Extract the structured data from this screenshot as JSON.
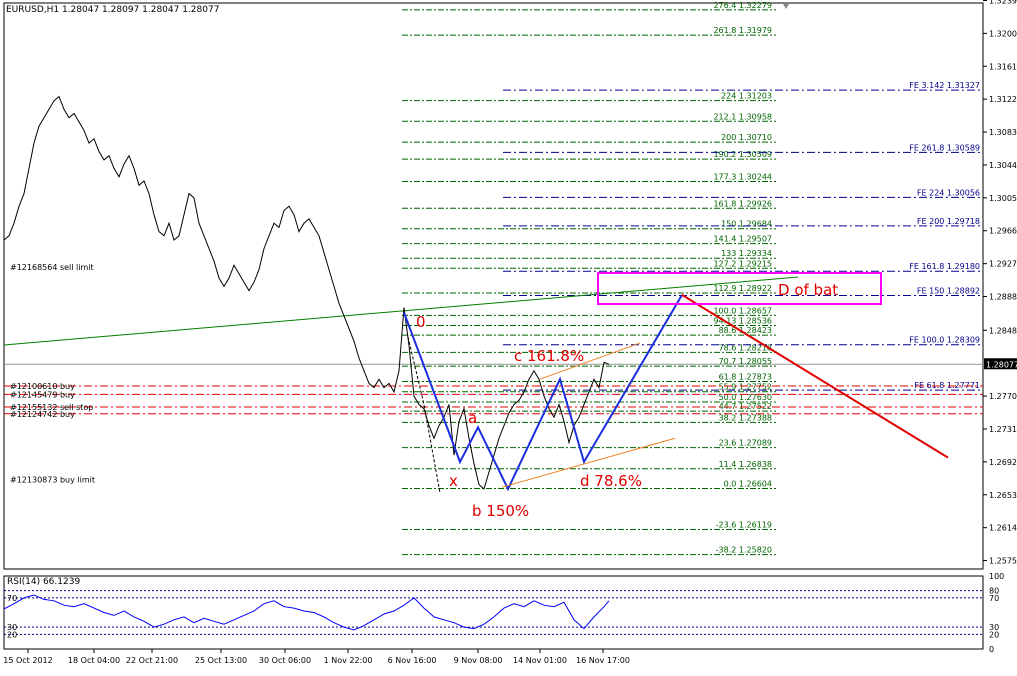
{
  "chart_data": {
    "type": "line",
    "title": "EURUSD,H1  1.28047 1.28097 1.28047 1.28077",
    "symbol": "EURUSD",
    "timeframe": "H1",
    "ohlc_header": "1.28047 1.28097 1.28047 1.28077",
    "current_price": "1.28077",
    "colors": {
      "price": "#000000",
      "fib_retrace": "#006400",
      "fib_ext": "#00008b",
      "pattern": "#1a2ee0",
      "projection": "#e00000",
      "orders": "#e00000",
      "channel": "#f08020",
      "trend": "#008000",
      "box": "#ff00ff",
      "label": "#e00000",
      "rsi": "#0000ff",
      "grid": "#000080"
    },
    "y_axis": {
      "ylim": [
        1.2565,
        1.3236
      ],
      "ticks": [
        "1.32390",
        "1.32000",
        "1.31610",
        "1.31220",
        "1.30830",
        "1.30440",
        "1.30050",
        "1.29660",
        "1.29270",
        "1.28880",
        "1.28480",
        "1.28077",
        "1.27700",
        "1.27310",
        "1.26920",
        "1.26530",
        "1.26140",
        "1.25750"
      ]
    },
    "x_axis": {
      "ticks": [
        "15 Oct 2012",
        "18 Oct 04:00",
        "22 Oct 21:00",
        "25 Oct 13:00",
        "30 Oct 06:00",
        "1 Nov 22:00",
        "6 Nov 16:00",
        "9 Nov 08:00",
        "14 Nov 01:00",
        "16 Nov 17:00"
      ]
    },
    "price_series": {
      "name": "EURUSD",
      "x": [
        0,
        5,
        10,
        15,
        20,
        25,
        30,
        35,
        40,
        45,
        50,
        55,
        60,
        65,
        70,
        75,
        80,
        85,
        90,
        95,
        100,
        105,
        110,
        115,
        120,
        125,
        130,
        135,
        140,
        145,
        150,
        155,
        160,
        165,
        170,
        175,
        180,
        185,
        190,
        195,
        200,
        205,
        210,
        215,
        220,
        225,
        230,
        235,
        240,
        245,
        250,
        255,
        260,
        265,
        270,
        275,
        280,
        285,
        290,
        295,
        300,
        305,
        310,
        315,
        320,
        325,
        330,
        335,
        340,
        345,
        350,
        355,
        360,
        365,
        370,
        375,
        380,
        385,
        390,
        395,
        400,
        405,
        410,
        415,
        420,
        425,
        430,
        435,
        440,
        445,
        450,
        455,
        460,
        465,
        470,
        475,
        480,
        485,
        490,
        495,
        500,
        505,
        510,
        515,
        520,
        525,
        530,
        535,
        540,
        545,
        550,
        555,
        560,
        565,
        570,
        575,
        580,
        585,
        590,
        595,
        600,
        605
      ],
      "y": [
        1.2955,
        1.296,
        1.2975,
        1.2995,
        1.301,
        1.304,
        1.307,
        1.309,
        1.31,
        1.311,
        1.312,
        1.3125,
        1.311,
        1.31,
        1.3105,
        1.3095,
        1.3085,
        1.307,
        1.3075,
        1.306,
        1.305,
        1.3055,
        1.304,
        1.303,
        1.3045,
        1.3055,
        1.304,
        1.302,
        1.3025,
        1.301,
        1.2985,
        1.2965,
        1.296,
        1.2975,
        1.2955,
        1.296,
        1.2985,
        1.301,
        1.3005,
        1.2975,
        1.296,
        1.2945,
        1.293,
        1.291,
        1.29,
        1.291,
        1.2925,
        1.2915,
        1.2905,
        1.2895,
        1.2905,
        1.292,
        1.2945,
        1.296,
        1.2975,
        1.297,
        1.299,
        1.2995,
        1.2985,
        1.2965,
        1.2975,
        1.298,
        1.297,
        1.296,
        1.294,
        1.292,
        1.29,
        1.288,
        1.2865,
        1.285,
        1.2835,
        1.2815,
        1.28,
        1.2785,
        1.278,
        1.279,
        1.278,
        1.2785,
        1.2775,
        1.28,
        1.2875,
        1.283,
        1.277,
        1.276,
        1.2755,
        1.2735,
        1.272,
        1.2735,
        1.2745,
        1.276,
        1.27,
        1.274,
        1.2755,
        1.272,
        1.269,
        1.2665,
        1.266,
        1.268,
        1.27,
        1.272,
        1.2735,
        1.275,
        1.276,
        1.2765,
        1.2775,
        1.279,
        1.28,
        1.279,
        1.277,
        1.2755,
        1.2745,
        1.276,
        1.274,
        1.2715,
        1.2735,
        1.2745,
        1.276,
        1.2775,
        1.279,
        1.278,
        1.281,
        1.28077
      ]
    },
    "fib_retracement": [
      {
        "label": "276.4 1.32279",
        "y": 1.32279
      },
      {
        "label": "261.8 1.31979",
        "y": 1.31979
      },
      {
        "label": "224 1.31203",
        "y": 1.31203
      },
      {
        "label": "212.1 1.30958",
        "y": 1.30958
      },
      {
        "label": "200 1.30710",
        "y": 1.3071
      },
      {
        "label": "190.2 1.30509",
        "y": 1.30509
      },
      {
        "label": "177.3 1.30244",
        "y": 1.30244
      },
      {
        "label": "161.8 1.29926",
        "y": 1.29926
      },
      {
        "label": "150 1.29684",
        "y": 1.29684
      },
      {
        "label": "141.4 1.29507",
        "y": 1.29507
      },
      {
        "label": "133 1.29334",
        "y": 1.29334
      },
      {
        "label": "127.2 1.29215",
        "y": 1.29215
      },
      {
        "label": "112.9 1.28922",
        "y": 1.28922
      },
      {
        "label": "100.0 1.28657",
        "y": 1.28657
      },
      {
        "label": "94.13 1.28536",
        "y": 1.28536
      },
      {
        "label": "88.6 1.28423",
        "y": 1.28423
      },
      {
        "label": "78.6 1.28218",
        "y": 1.28218
      },
      {
        "label": "70.7 1.28055",
        "y": 1.28055
      },
      {
        "label": "61.8 1.27873",
        "y": 1.27873
      },
      {
        "label": "55.9 1.27752",
        "y": 1.27752
      },
      {
        "label": "50.0 1.27630",
        "y": 1.2763
      },
      {
        "label": "44.7 1.27522",
        "y": 1.27522
      },
      {
        "label": "38.2 1.27388",
        "y": 1.27388
      },
      {
        "label": "23.6 1.27089",
        "y": 1.27089
      },
      {
        "label": "11.4 1.26838",
        "y": 1.26838
      },
      {
        "label": "0.0 1.26604",
        "y": 1.26604
      },
      {
        "label": "-23.6 1.26119",
        "y": 1.26119
      },
      {
        "label": "-38.2 1.25820",
        "y": 1.2582
      }
    ],
    "fib_expansion": [
      {
        "label": "FE 3.142 1.31327",
        "y": 1.31327
      },
      {
        "label": "FE 261.8 1.30589",
        "y": 1.30589
      },
      {
        "label": "FE 224 1.30056",
        "y": 1.30056
      },
      {
        "label": "FE 200 1.29718",
        "y": 1.29718
      },
      {
        "label": "FE 161.8 1.29180",
        "y": 1.2918
      },
      {
        "label": "FE 150 1.28892",
        "y": 1.28892
      },
      {
        "label": "FE 100.0 1.28309",
        "y": 1.28309
      },
      {
        "label": "FE 61.8 1.27771",
        "y": 1.27771
      }
    ],
    "orders": [
      {
        "label": "#12168564 sell limit",
        "y": 1.2923
      },
      {
        "label": "#12100610 buy",
        "y": 1.2782
      },
      {
        "label": "#12145479 buy",
        "y": 1.2772
      },
      {
        "label": "#12155132 sell stop",
        "y": 1.2757
      },
      {
        "label": "#12124742 buy",
        "y": 1.2749
      },
      {
        "label": "#12130873 buy limit",
        "y": 1.2671
      }
    ],
    "pattern_points": [
      {
        "label": "0",
        "x": 400,
        "y": 1.2869
      },
      {
        "label": "x",
        "x": 456,
        "y": 1.2692
      },
      {
        "label": "a",
        "x": 474,
        "y": 1.2733
      },
      {
        "label": "b 150%",
        "x": 504,
        "y": 1.266
      },
      {
        "label": "c 161.8%",
        "x": 556,
        "y": 1.279
      },
      {
        "label": "d 78.6%",
        "x": 580,
        "y": 1.2692
      },
      {
        "label": "",
        "x": 678,
        "y": 1.289
      }
    ],
    "projection": [
      {
        "x": 678,
        "y": 1.289
      },
      {
        "x": 944,
        "y": 1.2697
      }
    ],
    "pattern_label": "D of bat",
    "rsi": {
      "label": "RSI(14) 66.1239",
      "levels": [
        "100",
        "80",
        "70",
        "30",
        "20",
        "0"
      ],
      "x": [
        0,
        10,
        20,
        30,
        40,
        50,
        60,
        70,
        80,
        90,
        100,
        110,
        120,
        130,
        140,
        150,
        160,
        170,
        180,
        190,
        200,
        210,
        220,
        230,
        240,
        250,
        260,
        270,
        280,
        290,
        300,
        310,
        320,
        330,
        340,
        350,
        360,
        370,
        380,
        390,
        400,
        410,
        420,
        430,
        440,
        450,
        460,
        470,
        480,
        490,
        500,
        510,
        520,
        530,
        540,
        550,
        560,
        570,
        580,
        590,
        600,
        605
      ],
      "y": [
        55,
        62,
        70,
        74,
        68,
        66,
        60,
        58,
        62,
        56,
        50,
        46,
        52,
        44,
        38,
        30,
        34,
        40,
        44,
        36,
        42,
        38,
        34,
        40,
        46,
        52,
        62,
        66,
        58,
        56,
        52,
        50,
        44,
        36,
        30,
        26,
        32,
        40,
        48,
        52,
        60,
        70,
        56,
        44,
        40,
        36,
        30,
        28,
        34,
        44,
        56,
        62,
        58,
        66,
        60,
        58,
        64,
        40,
        28,
        44,
        58,
        66
      ]
    }
  }
}
